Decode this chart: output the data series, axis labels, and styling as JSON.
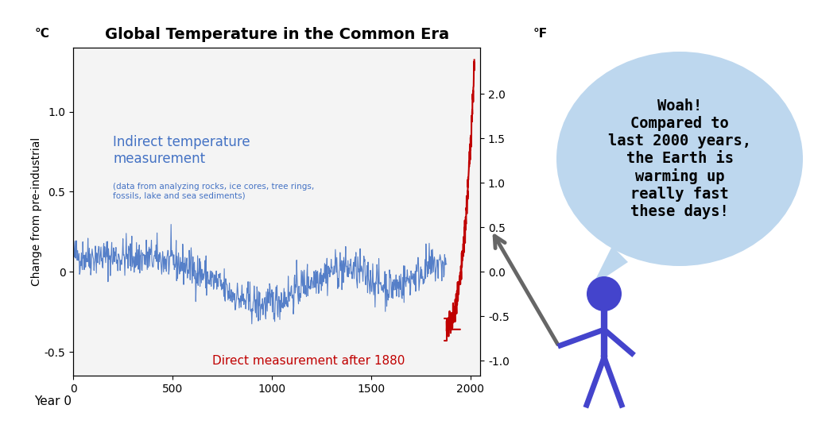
{
  "title": "Global Temperature in the Common Era",
  "ylabel_left": "Change from pre-industrial",
  "ylabel_left_unit": "°C",
  "ylabel_right_unit": "°F",
  "xlabel": "Year 0",
  "xlim": [
    0,
    2050
  ],
  "ylim_C": [
    -0.65,
    1.4
  ],
  "xticks": [
    0,
    500,
    1000,
    1500,
    2000
  ],
  "yticks_C": [
    -0.5,
    0.0,
    0.5,
    1.0
  ],
  "yticks_F": [
    -1.0,
    -0.5,
    0.0,
    0.5,
    1.0,
    1.5,
    2.0
  ],
  "indirect_label": "Indirect temperature\nmeasurement",
  "indirect_sublabel": "(data from analyzing rocks, ice cores, tree rings,\nfossils, lake and sea sediments)",
  "direct_label": "Direct measurement after 1880",
  "indirect_color": "#4472C4",
  "direct_color": "#C00000",
  "bubble_color": "#BDD7EE",
  "bubble_text": "Woah!\nCompared to\nlast 2000 years,\nthe Earth is\nwarming up\nreally fast\nthese days!",
  "figure_bg": "#FFFFFF",
  "stick_figure_color": "#4444CC",
  "arrow_color": "#666666"
}
